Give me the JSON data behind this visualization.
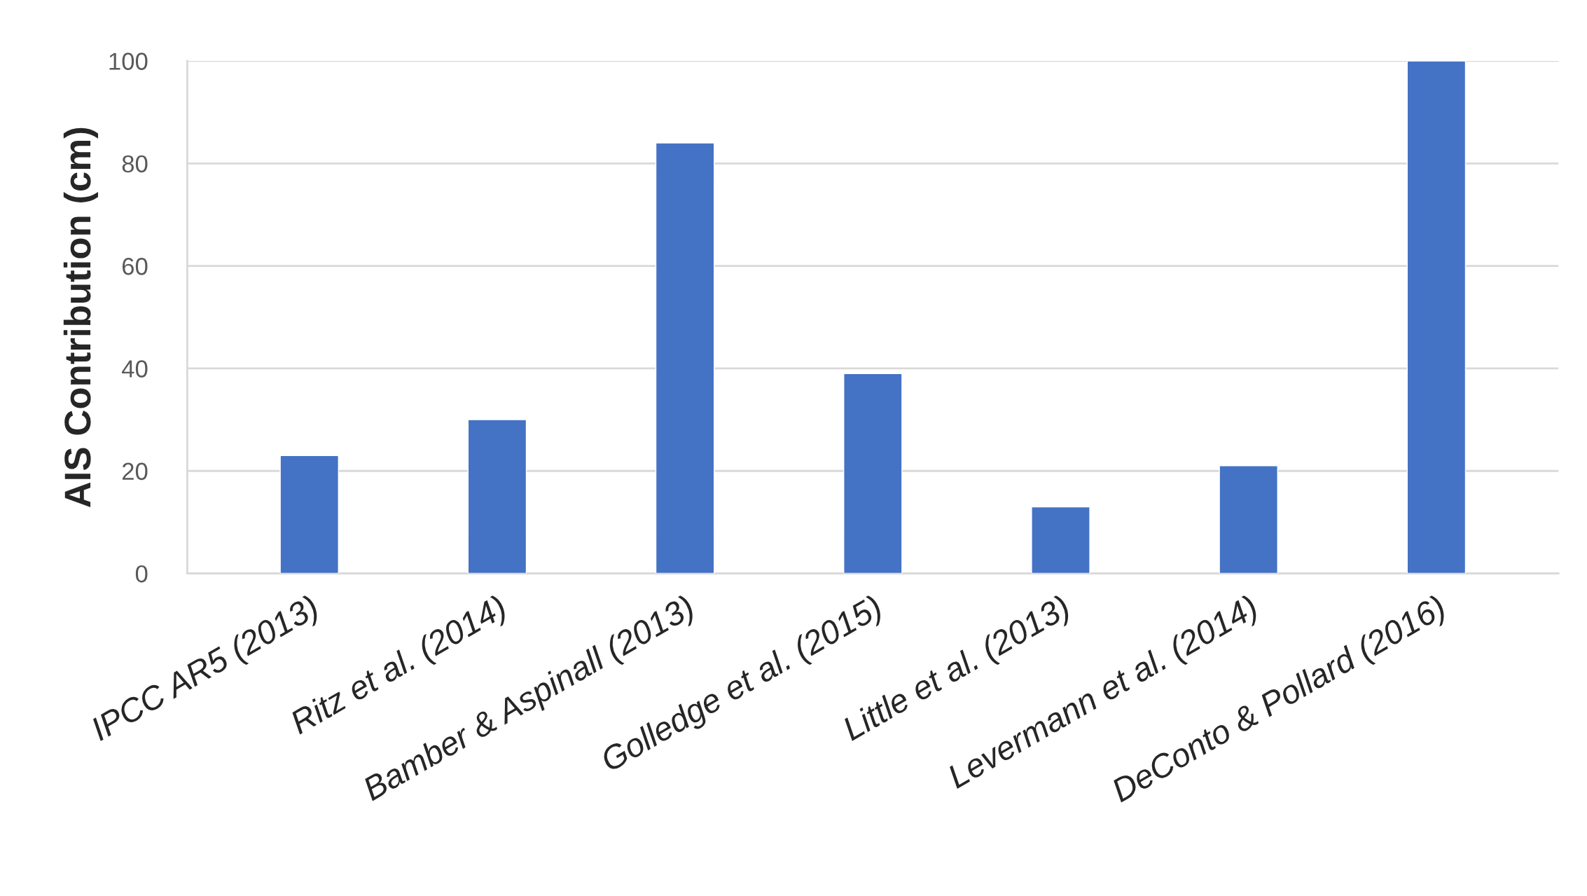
{
  "chart_data": {
    "type": "bar",
    "ylabel": "AIS Contribution (cm)",
    "categories": [
      "IPCC AR5 (2013)",
      "Ritz et al. (2014)",
      "Bamber & Aspinall (2013)",
      "Golledge et al. (2015)",
      "Little et al. (2013)",
      "Levermann et al. (2014)",
      "DeConto & Pollard (2016)"
    ],
    "values": [
      23,
      30,
      84,
      39,
      13,
      21,
      100
    ],
    "color": "#4472c4",
    "ylim": [
      0,
      100
    ],
    "yticks": [
      0,
      20,
      40,
      60,
      80,
      100
    ],
    "grid": "y"
  }
}
